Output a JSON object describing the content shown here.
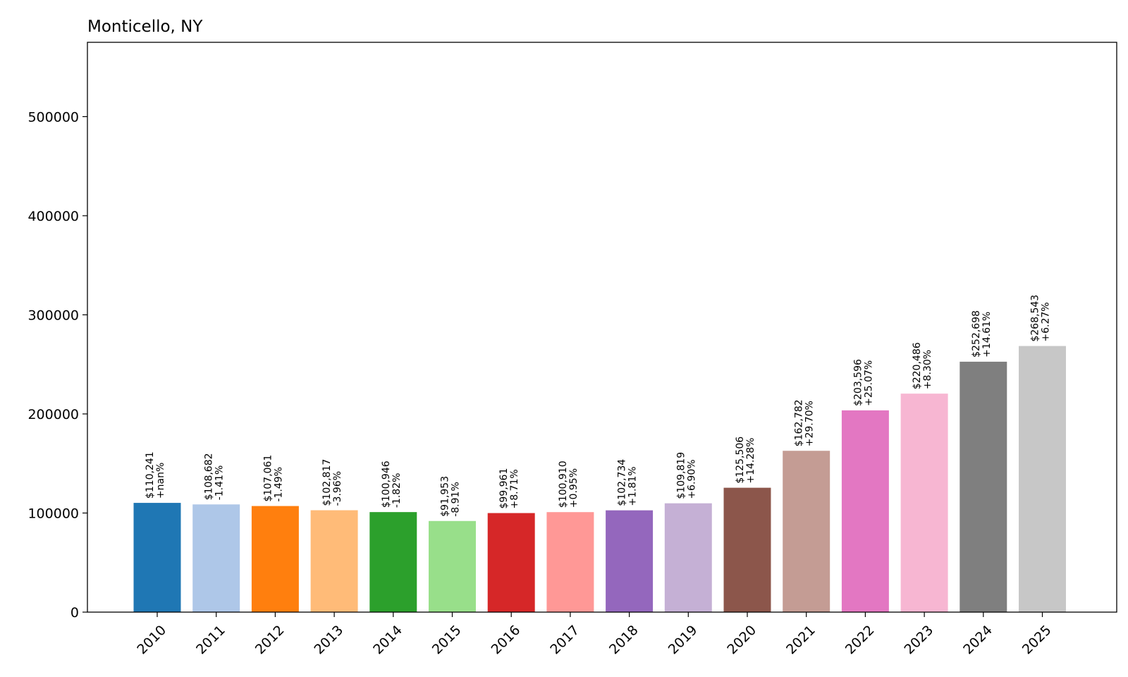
{
  "chart_data": {
    "type": "bar",
    "title": "Monticello, NY",
    "xlabel": "",
    "ylabel": "",
    "ylim": [
      0,
      575000
    ],
    "yticks": [
      0,
      100000,
      200000,
      300000,
      400000,
      500000
    ],
    "ytick_labels": [
      "0",
      "100000",
      "200000",
      "300000",
      "400000",
      "500000"
    ],
    "grid": false,
    "categories": [
      "2010",
      "2011",
      "2012",
      "2013",
      "2014",
      "2015",
      "2016",
      "2017",
      "2018",
      "2019",
      "2020",
      "2021",
      "2022",
      "2023",
      "2024",
      "2025"
    ],
    "values": [
      110241,
      108682,
      107061,
      102817,
      100946,
      91953,
      99961,
      100910,
      102734,
      109819,
      125506,
      162782,
      203596,
      220486,
      252698,
      268543
    ],
    "value_labels": [
      "$110,241",
      "$108,682",
      "$107,061",
      "$102,817",
      "$100,946",
      "$91,953",
      "$99,961",
      "$100,910",
      "$102,734",
      "$109,819",
      "$125,506",
      "$162,782",
      "$203,596",
      "$220,486",
      "$252,698",
      "$268,543"
    ],
    "change_labels": [
      "+nan%",
      "-1.41%",
      "-1.49%",
      "-3.96%",
      "-1.82%",
      "-8.91%",
      "+8.71%",
      "+0.95%",
      "+1.81%",
      "+6.90%",
      "+14.28%",
      "+29.70%",
      "+25.07%",
      "+8.30%",
      "+14.61%",
      "+6.27%"
    ],
    "colors": [
      "#1f77b4",
      "#aec7e8",
      "#ff7f0e",
      "#ffbb78",
      "#2ca02c",
      "#98df8a",
      "#d62728",
      "#ff9896",
      "#9467bd",
      "#c5b0d5",
      "#8c564b",
      "#c49c94",
      "#e377c2",
      "#f7b6d2",
      "#7f7f7f",
      "#c7c7c7"
    ]
  }
}
